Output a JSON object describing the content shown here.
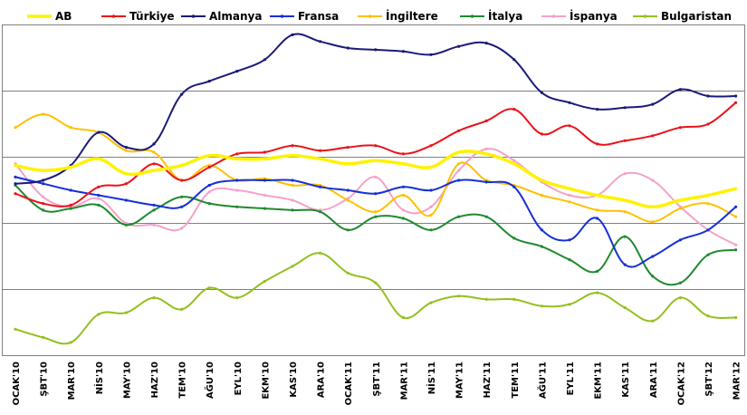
{
  "chart_data": {
    "type": "line",
    "title": "",
    "xlabel": "",
    "ylabel": "",
    "grid": true,
    "legend_position": "top",
    "y_range": [
      0,
      100
    ],
    "categories": [
      "OCAK'10",
      "ŞBT'10",
      "MAR'10",
      "NİS'10",
      "MAY'10",
      "HAZ'10",
      "TEM'10",
      "AĞU'10",
      "EYL'10",
      "EKM'10",
      "KAS'10",
      "ARA'10",
      "OCAK'11",
      "ŞBT'11",
      "MAR'11",
      "NİS'11",
      "MAY'11",
      "HAZ'11",
      "TEM'11",
      "AĞU'11",
      "EYL'11",
      "EKM'11",
      "KAS'11",
      "ARA'11",
      "OCAK'12",
      "ŞBT'12",
      "MAR'12"
    ],
    "series": [
      {
        "name": "AB",
        "color": "#FFF200",
        "width": 3.5,
        "values": [
          57.5,
          56,
          57,
          59.5,
          55,
          56,
          57.5,
          60.5,
          59.5,
          59.5,
          60.5,
          59.5,
          58,
          59,
          58,
          57,
          61.5,
          61,
          58,
          53,
          50.5,
          48.5,
          47,
          45,
          47,
          48.5,
          50.5
        ]
      },
      {
        "name": "Türkiye",
        "color": "#E8141B",
        "width": 2,
        "values": [
          49,
          46,
          45.5,
          51,
          52,
          58,
          53,
          57,
          61,
          61.5,
          63.5,
          62,
          63,
          63.5,
          61,
          63.5,
          68,
          71,
          74.5,
          67,
          69.5,
          64,
          65,
          66.5,
          69,
          70,
          76.5
        ]
      },
      {
        "name": "Almanya",
        "color": "#1A1A7A",
        "width": 2,
        "values": [
          52,
          53,
          57.5,
          67.5,
          63,
          64,
          79,
          83,
          86,
          89.5,
          97,
          95,
          93,
          92.5,
          92,
          91,
          93.5,
          94.5,
          89.5,
          79.5,
          76.5,
          74.5,
          75,
          76,
          80.5,
          78.5,
          78.5
        ]
      },
      {
        "name": "Fransa",
        "color": "#1530D6",
        "width": 2,
        "values": [
          54,
          52,
          50,
          48.5,
          47,
          45.5,
          45,
          51.5,
          53,
          53,
          53,
          51,
          50,
          49,
          51,
          50,
          53,
          52.5,
          51,
          38,
          35,
          41.5,
          27.5,
          30,
          35,
          38,
          45
        ]
      },
      {
        "name": "İngiltere",
        "color": "#FFC000",
        "width": 2,
        "values": [
          69,
          73,
          69,
          67.5,
          62,
          61.5,
          53,
          57.5,
          53,
          53.5,
          51.5,
          51.5,
          47,
          43.5,
          48.5,
          42.5,
          58,
          53,
          51.5,
          48.5,
          46.5,
          44,
          43.5,
          40.5,
          44.5,
          46,
          42
        ]
      },
      {
        "name": "İtalya",
        "color": "#1E8A2E",
        "width": 2,
        "values": [
          51.5,
          44,
          44.5,
          45.5,
          39.5,
          44,
          48,
          46,
          45,
          44.5,
          44,
          43.5,
          38,
          42,
          41.5,
          38,
          42,
          42,
          35.5,
          33,
          29,
          25.5,
          36,
          24,
          22,
          30.5,
          32
        ]
      },
      {
        "name": "İspanya",
        "color": "#F4A2C9",
        "width": 2,
        "values": [
          58,
          48,
          45,
          47.5,
          40,
          39.5,
          38.5,
          49.5,
          50,
          48.5,
          47,
          44,
          47.5,
          54,
          44,
          45,
          56,
          62.5,
          59,
          52.5,
          48.5,
          48.5,
          55,
          53,
          45,
          38,
          33.5
        ]
      },
      {
        "name": "Bulgaristan",
        "color": "#92C11F",
        "width": 2,
        "values": [
          8,
          5.5,
          4,
          12.5,
          13,
          17.5,
          14,
          20.5,
          17.5,
          22.5,
          27,
          31,
          25,
          22,
          11.5,
          16,
          18,
          17,
          17,
          15,
          15.5,
          19,
          14.5,
          10.5,
          17.5,
          12,
          11.5
        ]
      }
    ]
  }
}
